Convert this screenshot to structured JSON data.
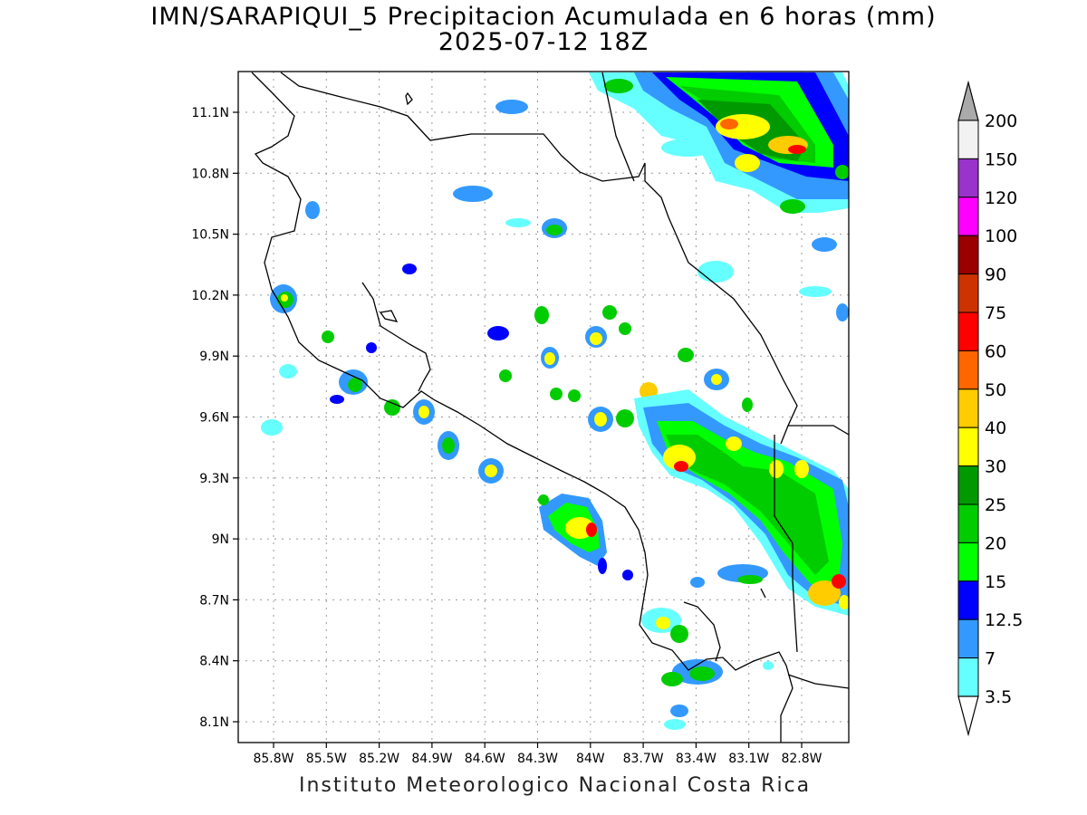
{
  "header": {
    "title": "IMN/SARAPIQUI_5 Precipitacion Acumulada en 6 horas (mm)",
    "subtitle": "2025-07-12 18Z"
  },
  "footer": {
    "credit": "Instituto Meteorologico Nacional Costa Rica"
  },
  "axes": {
    "lat_ticks": [
      "11.1N",
      "10.8N",
      "10.5N",
      "10.2N",
      "9.9N",
      "9.6N",
      "9.3N",
      "9N",
      "8.7N",
      "8.4N",
      "8.1N"
    ],
    "lon_ticks": [
      "85.8W",
      "85.5W",
      "85.2W",
      "84.9W",
      "84.6W",
      "84.3W",
      "84W",
      "83.7W",
      "83.4W",
      "83.1W",
      "82.8W"
    ],
    "grid": "dotted"
  },
  "legend": {
    "levels": [
      "200",
      "150",
      "120",
      "100",
      "90",
      "75",
      "60",
      "50",
      "40",
      "30",
      "25",
      "20",
      "15",
      "12.5",
      "7",
      "3.5"
    ],
    "colors": [
      "#f2f2f2",
      "#9933cc",
      "#ff00ff",
      "#990000",
      "#cc3300",
      "#ff0000",
      "#ff6600",
      "#ffcc00",
      "#ffff00",
      "#009900",
      "#00cc00",
      "#00ff00",
      "#0000ff",
      "#3399ff",
      "#66ffff",
      "#ffffff"
    ],
    "top_arrow_color": "#aaaaaa",
    "bottom_arrow_color": "#ffffff"
  }
}
